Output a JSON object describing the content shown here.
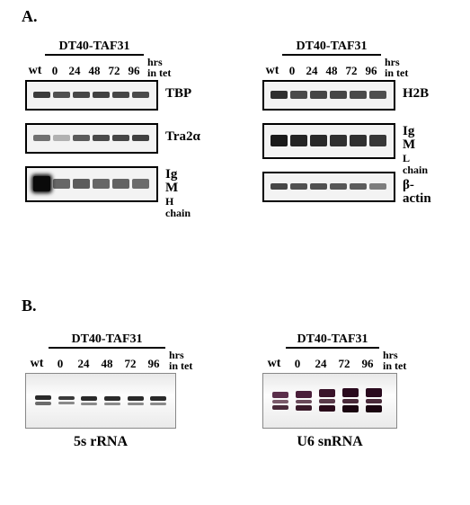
{
  "section_a_label": "A.",
  "section_b_label": "B.",
  "strain": "DT40-TAF31",
  "wt": "wt",
  "hrs": "hrs\nin tet",
  "timepoints_a": [
    "0",
    "24",
    "48",
    "72",
    "96"
  ],
  "timepoints_b_left": [
    "0",
    "24",
    "48",
    "72",
    "96"
  ],
  "timepoints_b_right": [
    "0",
    "24",
    "72",
    "96"
  ],
  "blots_left": [
    {
      "label": "TBP",
      "intensities": [
        0.85,
        0.75,
        0.8,
        0.82,
        0.8,
        0.78
      ],
      "height": 7,
      "color": "#1a1a1a"
    },
    {
      "label": "Tra2α",
      "intensities": [
        0.6,
        0.3,
        0.7,
        0.78,
        0.8,
        0.82
      ],
      "height": 7,
      "color": "#1a1a1a"
    },
    {
      "label": "Ig M",
      "sub": "H chain",
      "intensities": [
        1.0,
        0.6,
        0.65,
        0.6,
        0.62,
        0.58
      ],
      "height": 11,
      "color": "#0a0a0a",
      "smear": true
    }
  ],
  "blots_right": [
    {
      "label": "H2B",
      "intensities": [
        0.9,
        0.78,
        0.8,
        0.8,
        0.78,
        0.76
      ],
      "height": 9,
      "color": "#1a1a1a"
    },
    {
      "label": "Ig M",
      "sub": "L chain",
      "intensities": [
        0.95,
        0.9,
        0.88,
        0.85,
        0.85,
        0.82
      ],
      "height": 13,
      "color": "#0d0d0d"
    },
    {
      "label": "β-actin",
      "intensities": [
        0.8,
        0.75,
        0.75,
        0.72,
        0.7,
        0.55
      ],
      "height": 7,
      "color": "#1a1a1a"
    }
  ],
  "rna_left": {
    "title": "5s rRNA",
    "lanes": [
      {
        "bands": [
          {
            "h": 5,
            "c": "#2a2a2a"
          },
          {
            "h": 4,
            "c": "#6b6b6b"
          }
        ]
      },
      {
        "bands": [
          {
            "h": 4,
            "c": "#3a3a3a"
          },
          {
            "h": 3,
            "c": "#8a8a8a"
          }
        ]
      },
      {
        "bands": [
          {
            "h": 5,
            "c": "#2a2a2a"
          },
          {
            "h": 3,
            "c": "#8a8a8a"
          }
        ]
      },
      {
        "bands": [
          {
            "h": 5,
            "c": "#2a2a2a"
          },
          {
            "h": 3,
            "c": "#8a8a8a"
          }
        ]
      },
      {
        "bands": [
          {
            "h": 5,
            "c": "#2a2a2a"
          },
          {
            "h": 3,
            "c": "#8a8a8a"
          }
        ]
      },
      {
        "bands": [
          {
            "h": 5,
            "c": "#2a2a2a"
          },
          {
            "h": 3,
            "c": "#8a8a8a"
          }
        ]
      }
    ]
  },
  "rna_right": {
    "title": "U6 snRNA",
    "lanes": [
      {
        "bands": [
          {
            "h": 7,
            "c": "#5a2e4a"
          },
          {
            "h": 4,
            "c": "#7a5a6a"
          },
          {
            "h": 5,
            "c": "#4a2a3a"
          }
        ]
      },
      {
        "bands": [
          {
            "h": 8,
            "c": "#4a1e3a"
          },
          {
            "h": 4,
            "c": "#6a4a5a"
          },
          {
            "h": 6,
            "c": "#3a1a2a"
          }
        ]
      },
      {
        "bands": [
          {
            "h": 9,
            "c": "#3a142a"
          },
          {
            "h": 5,
            "c": "#5a3a4a"
          },
          {
            "h": 7,
            "c": "#2a0a1a"
          }
        ]
      },
      {
        "bands": [
          {
            "h": 10,
            "c": "#2a0a1e"
          },
          {
            "h": 5,
            "c": "#4a2a3a"
          },
          {
            "h": 8,
            "c": "#1a0510"
          }
        ]
      },
      {
        "bands": [
          {
            "h": 10,
            "c": "#2a0a1e"
          },
          {
            "h": 5,
            "c": "#4a2a3a"
          },
          {
            "h": 8,
            "c": "#1a0510"
          }
        ]
      }
    ]
  },
  "band_width": 19
}
